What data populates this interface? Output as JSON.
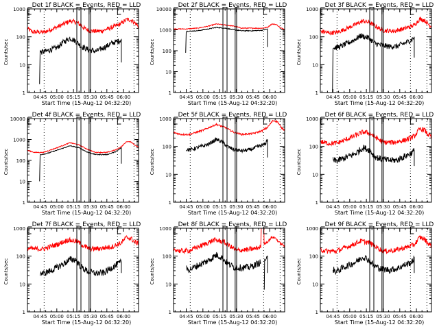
{
  "figure": {
    "common": {
      "xlabel": "Start Time (15-Aug-12 04:32:20)",
      "ylabel": "Counts/sec",
      "legend_text": "BLACK = Events, RED = LLD",
      "x_tick_labels": [
        "04:45",
        "05:00",
        "05:15",
        "05:30",
        "05:45",
        "06:00"
      ],
      "x_tick_minutes": [
        15,
        30,
        45,
        60,
        75,
        90
      ],
      "x_range_minutes": [
        3.6,
        103.5
      ],
      "x_origin": "04:30",
      "dotted_lines_minutes": [
        18.6,
        84.6,
        99.4
      ],
      "solid_lines_minutes": [
        48.0,
        51.7,
        59.0,
        60.3
      ],
      "markers": [
        {
          "label": "E",
          "minute": 4.0
        },
        {
          "label": "F",
          "minute": 48.0
        },
        {
          "label": "F",
          "minute": 59.0
        },
        {
          "label": "E",
          "minute": 84.6
        }
      ],
      "series_colors": {
        "events": "#000000",
        "lld": "#ff0000"
      }
    }
  },
  "chart_data": [
    {
      "type": "line",
      "title": "Det 1f BLACK = Events, RED = LLD",
      "xlabel": "Start Time (15-Aug-12 04:32:20)",
      "ylabel": "Counts/sec",
      "yscale": "log",
      "ylim": [
        1,
        1000
      ],
      "y_tick_labels": [
        "1",
        "10",
        "100",
        "1000"
      ],
      "series": [
        {
          "name": "LLD",
          "color": "#ff0000",
          "noise": 0.08,
          "x": [
            3.6,
            8,
            18,
            30,
            42,
            48,
            55,
            60,
            70,
            80,
            88,
            93,
            97,
            100,
            103.5
          ],
          "y": [
            200,
            150,
            145,
            220,
            370,
            330,
            200,
            160,
            160,
            220,
            300,
            420,
            400,
            320,
            240
          ]
        },
        {
          "name": "Events",
          "color": "#000000",
          "noise": 0.1,
          "x": [
            15,
            15.5,
            20,
            30,
            36,
            42,
            47,
            52,
            58,
            65,
            72,
            80,
            86,
            88
          ],
          "y": [
            30,
            28,
            30,
            40,
            65,
            90,
            70,
            45,
            35,
            30,
            40,
            60,
            70,
            80
          ],
          "spike_start": [
            14.5,
            2
          ],
          "spike_end": [
            88,
            12
          ]
        }
      ]
    },
    {
      "type": "line",
      "title": "Det 2f BLACK = Events, RED = LLD",
      "xlabel": "Start Time (15-Aug-12 04:32:20)",
      "ylabel": "Counts/sec",
      "yscale": "log",
      "ylim": [
        1,
        10000
      ],
      "y_tick_labels": [
        "1",
        "10",
        "100",
        "1000",
        "10000"
      ],
      "series": [
        {
          "name": "LLD",
          "color": "#ff0000",
          "noise": 0.02,
          "x": [
            3.6,
            15,
            25,
            35,
            42,
            50,
            58,
            65,
            75,
            83,
            88,
            92,
            96,
            100,
            103.5
          ],
          "y": [
            1100,
            1100,
            1200,
            1500,
            1900,
            1700,
            1500,
            1200,
            1200,
            1200,
            1300,
            1900,
            1800,
            1200,
            1100
          ]
        },
        {
          "name": "Events",
          "color": "#000000",
          "noise": 0.02,
          "x": [
            15,
            15.5,
            25,
            35,
            42,
            50,
            58,
            65,
            75,
            83,
            88
          ],
          "y": [
            800,
            850,
            900,
            1100,
            1300,
            1200,
            1000,
            900,
            900,
            950,
            1100
          ],
          "spike_start": [
            14.5,
            80
          ],
          "spike_end": [
            88,
            150
          ]
        }
      ]
    },
    {
      "type": "line",
      "title": "Det 3f BLACK = Events, RED = LLD",
      "xlabel": "Start Time (15-Aug-12 04:32:20)",
      "ylabel": "Counts/sec",
      "yscale": "log",
      "ylim": [
        1,
        1000
      ],
      "y_tick_labels": [
        "1",
        "10",
        "100",
        "1000"
      ],
      "series": [
        {
          "name": "LLD",
          "color": "#ff0000",
          "noise": 0.08,
          "x": [
            3.6,
            10,
            18,
            30,
            42,
            48,
            55,
            60,
            70,
            80,
            88,
            93,
            97,
            100,
            103.5
          ],
          "y": [
            160,
            140,
            140,
            220,
            370,
            320,
            220,
            170,
            160,
            200,
            260,
            430,
            400,
            300,
            230
          ]
        },
        {
          "name": "Events",
          "color": "#000000",
          "noise": 0.1,
          "x": [
            15,
            16,
            22,
            32,
            40,
            47,
            52,
            58,
            65,
            72,
            80,
            86,
            88
          ],
          "y": [
            45,
            40,
            45,
            70,
            110,
            90,
            60,
            50,
            45,
            45,
            60,
            80,
            100
          ],
          "spike_start": [
            14.5,
            1
          ],
          "spike_end": [
            88,
            18
          ]
        }
      ]
    },
    {
      "type": "line",
      "title": "Det 4f BLACK = Events, RED = LLD",
      "xlabel": "Start Time (15-Aug-12 04:32:20)",
      "ylabel": "Counts/sec",
      "yscale": "log",
      "ylim": [
        1,
        10000
      ],
      "y_tick_labels": [
        "1",
        "10",
        "100",
        "1000",
        "10000"
      ],
      "series": [
        {
          "name": "LLD",
          "color": "#ff0000",
          "noise": 0.02,
          "x": [
            3.6,
            10,
            18,
            30,
            42,
            50,
            58,
            65,
            75,
            83,
            88,
            93,
            97,
            100,
            103.5
          ],
          "y": [
            300,
            240,
            240,
            400,
            700,
            550,
            330,
            240,
            240,
            320,
            450,
            800,
            750,
            550,
            420
          ]
        },
        {
          "name": "Events",
          "color": "#000000",
          "noise": 0.02,
          "x": [
            15,
            15.5,
            22,
            32,
            42,
            50,
            58,
            65,
            75,
            83,
            88
          ],
          "y": [
            180,
            190,
            220,
            330,
            500,
            400,
            240,
            190,
            190,
            260,
            400
          ],
          "spike_start": [
            14.5,
            10
          ],
          "spike_end": [
            88,
            70
          ]
        }
      ]
    },
    {
      "type": "line",
      "title": "Det 5f BLACK = Events, RED = LLD",
      "xlabel": "Start Time (15-Aug-12 04:32:20)",
      "ylabel": "Counts/sec",
      "yscale": "log",
      "ylim": [
        1,
        1000
      ],
      "y_tick_labels": [
        "1",
        "10",
        "100",
        "1000"
      ],
      "series": [
        {
          "name": "LLD",
          "color": "#ff0000",
          "noise": 0.03,
          "x": [
            3.6,
            10,
            18,
            30,
            42,
            50,
            58,
            65,
            75,
            83,
            88,
            93,
            97,
            100,
            103.5
          ],
          "y": [
            320,
            270,
            270,
            380,
            620,
            480,
            320,
            270,
            290,
            360,
            480,
            850,
            780,
            500,
            380
          ]
        },
        {
          "name": "Events",
          "color": "#000000",
          "noise": 0.07,
          "x": [
            15,
            18,
            25,
            35,
            42,
            48,
            52,
            58,
            65,
            72,
            80,
            86,
            88
          ],
          "y": [
            80,
            75,
            90,
            120,
            180,
            140,
            100,
            75,
            70,
            75,
            100,
            120,
            180
          ],
          "spike_end": [
            88,
            40
          ]
        }
      ]
    },
    {
      "type": "line",
      "title": "Det 6f BLACK = Events, RED = LLD",
      "xlabel": "Start Time (15-Aug-12 04:32:20)",
      "ylabel": "Counts/sec",
      "yscale": "log",
      "ylim": [
        1,
        1000
      ],
      "y_tick_labels": [
        "1",
        "10",
        "100",
        "1000"
      ],
      "series": [
        {
          "name": "LLD",
          "color": "#ff0000",
          "noise": 0.09,
          "x": [
            3.6,
            10,
            18,
            30,
            42,
            48,
            55,
            60,
            70,
            80,
            88,
            93,
            97,
            100,
            103.5
          ],
          "y": [
            150,
            130,
            130,
            200,
            330,
            300,
            190,
            140,
            140,
            170,
            230,
            420,
            400,
            280,
            220
          ]
        },
        {
          "name": "Events",
          "color": "#000000",
          "noise": 0.12,
          "x": [
            15,
            18,
            25,
            35,
            42,
            48,
            52,
            58,
            65,
            72,
            80,
            86,
            88
          ],
          "y": [
            32,
            30,
            38,
            55,
            90,
            75,
            45,
            35,
            32,
            32,
            45,
            60,
            70
          ],
          "spike_end": [
            88,
            20
          ]
        }
      ]
    },
    {
      "type": "line",
      "title": "Det 7f BLACK = Events, RED = LLD",
      "xlabel": "Start Time (15-Aug-12 04:32:20)",
      "ylabel": "Counts/sec",
      "yscale": "log",
      "ylim": [
        1,
        1000
      ],
      "y_tick_labels": [
        "1",
        "10",
        "100",
        "1000"
      ],
      "series": [
        {
          "name": "LLD",
          "color": "#ff0000",
          "noise": 0.09,
          "x": [
            3.6,
            10,
            18,
            30,
            40,
            48,
            55,
            60,
            70,
            80,
            88,
            93,
            97,
            100,
            103.5
          ],
          "y": [
            190,
            180,
            180,
            260,
            380,
            340,
            220,
            180,
            190,
            220,
            300,
            480,
            420,
            320,
            280
          ]
        },
        {
          "name": "Events",
          "color": "#000000",
          "noise": 0.12,
          "x": [
            15,
            18,
            25,
            35,
            42,
            47,
            52,
            58,
            65,
            72,
            80,
            86,
            88
          ],
          "y": [
            25,
            24,
            30,
            50,
            75,
            75,
            40,
            28,
            24,
            25,
            40,
            55,
            60
          ],
          "spike_end": [
            88,
            25
          ]
        }
      ]
    },
    {
      "type": "line",
      "title": "Det 8f BLACK = Events, RED = LLD",
      "xlabel": "Start Time (15-Aug-12 04:32:20)",
      "ylabel": "Counts/sec",
      "yscale": "log",
      "ylim": [
        1,
        1000
      ],
      "y_tick_labels": [
        "1",
        "10",
        "100",
        "1000"
      ],
      "series": [
        {
          "name": "LLD",
          "color": "#ff0000",
          "noise": 0.09,
          "x": [
            3.6,
            10,
            18,
            30,
            40,
            48,
            55,
            60,
            70,
            78,
            82,
            82.5
          ],
          "y": [
            180,
            150,
            160,
            250,
            380,
            330,
            220,
            160,
            170,
            190,
            220,
            1000
          ]
        },
        {
          "name": "LLD (after gap)",
          "color": "#ff0000",
          "noise": 0.04,
          "x": [
            84.8,
            85,
            88,
            92,
            95,
            99,
            103.5
          ],
          "y": [
            1000,
            280,
            320,
            480,
            450,
            300,
            230
          ]
        },
        {
          "name": "Events",
          "color": "#000000",
          "noise": 0.12,
          "x": [
            15,
            18,
            25,
            35,
            42,
            47,
            52,
            58,
            65,
            72,
            80,
            82
          ],
          "y": [
            35,
            33,
            45,
            70,
            110,
            90,
            55,
            40,
            38,
            40,
            55,
            60
          ]
        },
        {
          "name": "Events (after gap)",
          "color": "#000000",
          "noise": 0.05,
          "x": [
            85.2,
            85.5,
            87,
            88
          ],
          "y": [
            6,
            70,
            80,
            100
          ],
          "spike_end": [
            88,
            25
          ]
        }
      ]
    },
    {
      "type": "line",
      "title": "Det 9f BLACK = Events, RED = LLD",
      "xlabel": "Start Time (15-Aug-12 04:32:20)",
      "ylabel": "Counts/sec",
      "yscale": "log",
      "ylim": [
        1,
        1000
      ],
      "y_tick_labels": [
        "1",
        "10",
        "100",
        "1000"
      ],
      "series": [
        {
          "name": "LLD",
          "color": "#ff0000",
          "noise": 0.09,
          "x": [
            3.6,
            10,
            18,
            30,
            40,
            48,
            55,
            60,
            70,
            80,
            88,
            93,
            97,
            100,
            103.5
          ],
          "y": [
            170,
            150,
            150,
            230,
            350,
            300,
            200,
            150,
            160,
            200,
            260,
            470,
            420,
            300,
            230
          ]
        },
        {
          "name": "Events",
          "color": "#000000",
          "noise": 0.12,
          "x": [
            15,
            18,
            25,
            35,
            42,
            47,
            52,
            58,
            65,
            72,
            80,
            86,
            88
          ],
          "y": [
            33,
            28,
            40,
            60,
            95,
            75,
            45,
            35,
            32,
            35,
            50,
            60,
            90
          ],
          "spike_end": [
            88,
            25
          ]
        }
      ]
    }
  ]
}
